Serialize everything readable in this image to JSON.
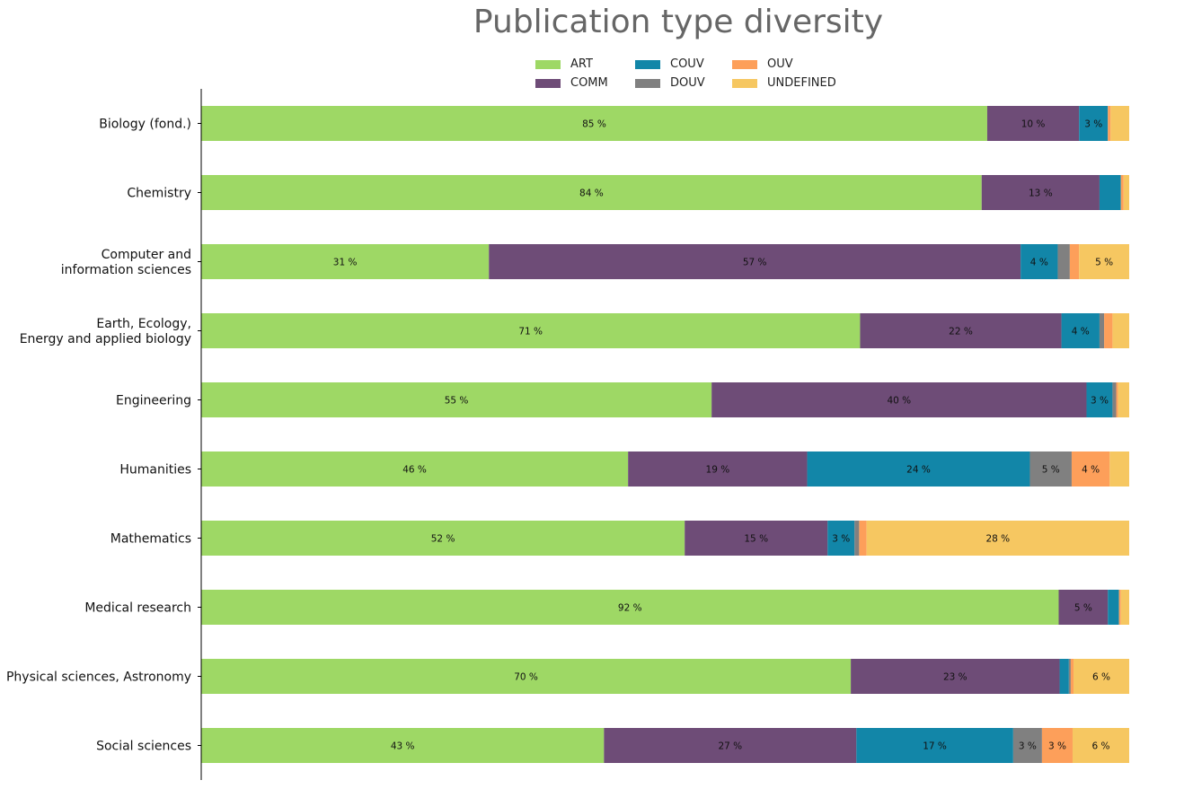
{
  "chart_data": {
    "type": "bar",
    "orientation": "horizontal",
    "stacked": true,
    "title": "Publication type diversity",
    "xlabel": "",
    "ylabel": "",
    "xlim": [
      0,
      100
    ],
    "grid": false,
    "legend_position": "top-center",
    "categories": [
      "Biology (fond.)",
      "Chemistry",
      "Computer and\ninformation sciences",
      "Earth, Ecology,\nEnergy and applied biology",
      "Engineering",
      "Humanities",
      "Mathematics",
      "Medical research",
      "Physical sciences, Astronomy",
      "Social sciences"
    ],
    "series": [
      {
        "name": "ART",
        "color": "#9ed865",
        "values": [
          84.7,
          84.1,
          31.0,
          71.0,
          55.0,
          46.0,
          52.1,
          92.4,
          70.0,
          43.4
        ]
      },
      {
        "name": "COMM",
        "color": "#6e4c77",
        "values": [
          9.9,
          12.7,
          57.3,
          21.7,
          40.4,
          19.3,
          15.4,
          5.3,
          22.5,
          27.2
        ]
      },
      {
        "name": "COUV",
        "color": "#1286a8",
        "values": [
          3.1,
          2.3,
          4.0,
          4.1,
          2.8,
          24.0,
          2.9,
          1.2,
          1.0,
          16.9
        ]
      },
      {
        "name": "DOUV",
        "color": "#808080",
        "values": [
          0.0,
          0.0,
          1.3,
          0.5,
          0.4,
          4.5,
          0.5,
          0.0,
          0.2,
          3.1
        ]
      },
      {
        "name": "OUV",
        "color": "#fd9f5a",
        "values": [
          0.3,
          0.3,
          1.0,
          0.9,
          0.2,
          4.1,
          0.8,
          0.2,
          0.3,
          3.3
        ]
      },
      {
        "name": "UNDEFINED",
        "color": "#f6c761",
        "values": [
          2.0,
          0.6,
          5.4,
          1.8,
          1.2,
          2.1,
          28.3,
          0.9,
          6.0,
          6.1
        ]
      }
    ],
    "label_threshold_pct": 2.5
  }
}
